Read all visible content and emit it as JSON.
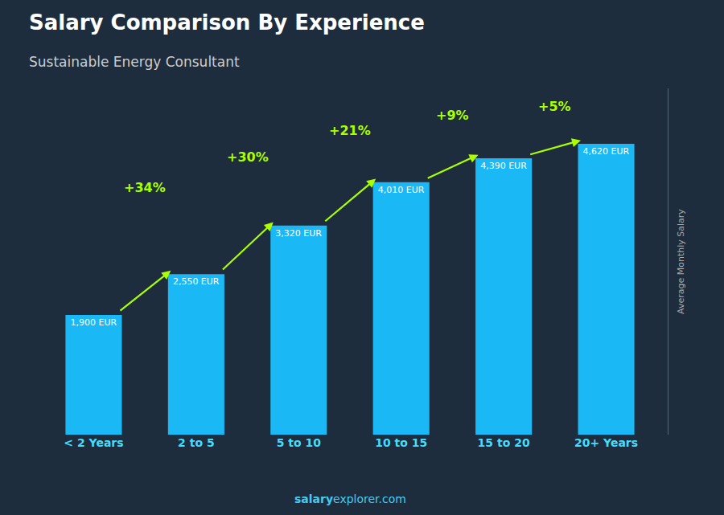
{
  "chart_data": {
    "type": "bar",
    "title": "Salary Comparison By Experience",
    "subtitle": "Sustainable Energy Consultant",
    "categories": [
      "< 2 Years",
      "2 to 5",
      "5 to 10",
      "10 to 15",
      "15 to 20",
      "20+ Years"
    ],
    "values": [
      1900,
      2550,
      3320,
      4010,
      4390,
      4620
    ],
    "value_labels": [
      "1,900 EUR",
      "2,550 EUR",
      "3,320 EUR",
      "4,010 EUR",
      "4,390 EUR",
      "4,620 EUR"
    ],
    "data_labels": true,
    "color": "#1ab8f5",
    "ylabel": "Average Monthly Salary",
    "ylim": [
      0,
      5500
    ],
    "yticks": [],
    "tick_labels": "x",
    "grid": false,
    "annotations": [
      {
        "from": "< 2 Years",
        "to": "2 to 5",
        "text": "+34%"
      },
      {
        "from": "2 to 5",
        "to": "5 to 10",
        "text": "+30%"
      },
      {
        "from": "5 to 10",
        "to": "10 to 15",
        "text": "+21%"
      },
      {
        "from": "10 to 15",
        "to": "15 to 20",
        "text": "+9%"
      },
      {
        "from": "15 to 20",
        "to": "20+ Years",
        "text": "+5%"
      }
    ],
    "footer": [
      "salary",
      "explorer.com"
    ]
  }
}
